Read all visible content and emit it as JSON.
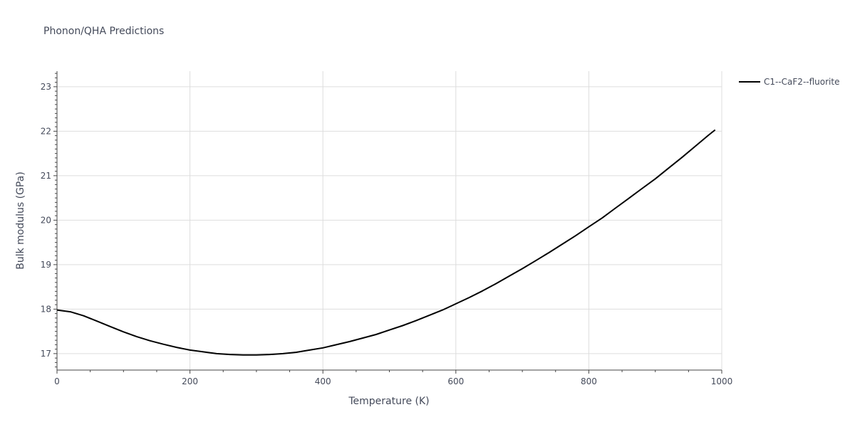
{
  "chart_data": {
    "type": "line",
    "title": "Phonon/QHA Predictions",
    "xlabel": "Temperature (K)",
    "ylabel": "Bulk modulus (GPa)",
    "xlim": [
      0,
      1000
    ],
    "ylim": [
      16.63,
      23.35
    ],
    "x_ticks": [
      0,
      200,
      400,
      600,
      800,
      1000
    ],
    "y_ticks": [
      17,
      18,
      19,
      20,
      21,
      22,
      23
    ],
    "grid": true,
    "legend_position": "top-right",
    "series": [
      {
        "name": "C1--CaF2--fluorite",
        "color": "#000000",
        "x": [
          0,
          20,
          40,
          60,
          80,
          100,
          120,
          140,
          160,
          180,
          200,
          220,
          240,
          260,
          280,
          300,
          320,
          340,
          360,
          380,
          400,
          420,
          440,
          460,
          480,
          500,
          520,
          540,
          560,
          580,
          600,
          620,
          640,
          660,
          680,
          700,
          720,
          740,
          760,
          780,
          800,
          820,
          840,
          860,
          880,
          900,
          920,
          940,
          960,
          980,
          990
        ],
        "y": [
          17.98,
          17.94,
          17.85,
          17.73,
          17.61,
          17.49,
          17.38,
          17.29,
          17.21,
          17.14,
          17.08,
          17.04,
          17.0,
          16.98,
          16.97,
          16.97,
          16.98,
          17.0,
          17.03,
          17.08,
          17.13,
          17.2,
          17.27,
          17.35,
          17.43,
          17.53,
          17.63,
          17.74,
          17.86,
          17.98,
          18.12,
          18.26,
          18.41,
          18.57,
          18.74,
          18.91,
          19.09,
          19.27,
          19.46,
          19.65,
          19.85,
          20.05,
          20.27,
          20.49,
          20.71,
          20.93,
          21.17,
          21.41,
          21.66,
          21.91,
          22.03
        ]
      }
    ]
  }
}
